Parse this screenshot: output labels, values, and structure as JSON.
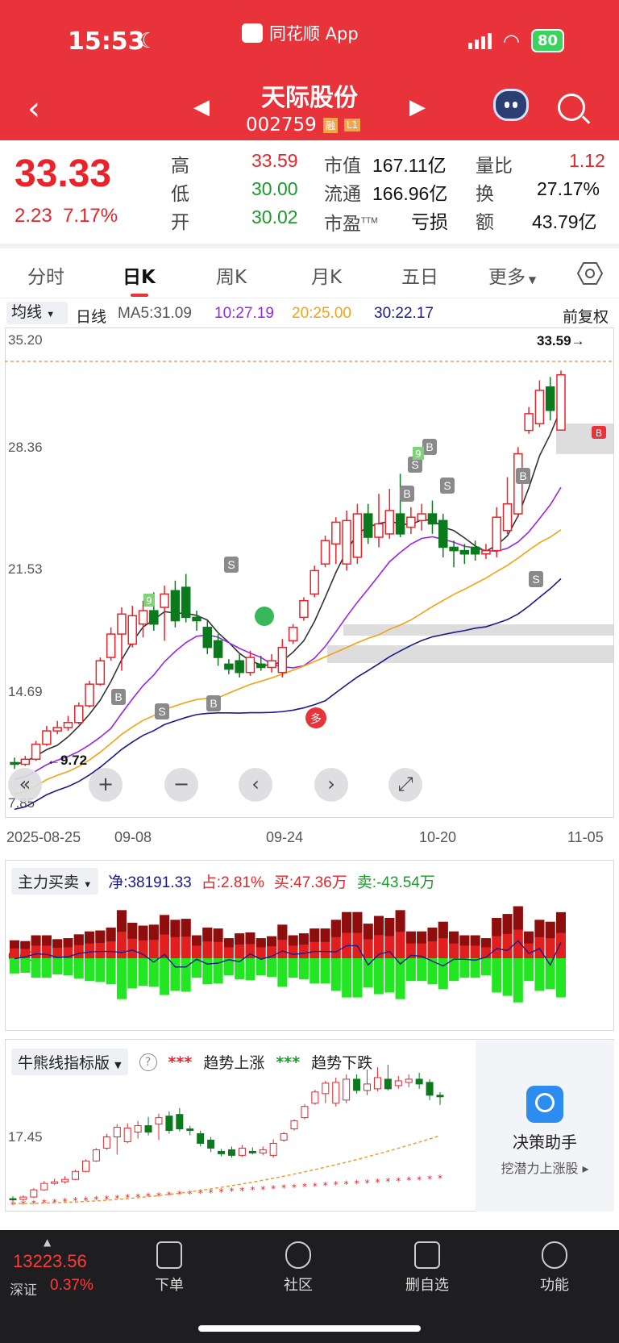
{
  "status": {
    "time": "15:53",
    "app_name": "同花顺 App",
    "battery": "80"
  },
  "stock": {
    "name": "天际股份",
    "code": "002759",
    "tag1": "融",
    "tag2": "L1"
  },
  "quote": {
    "price": "33.33",
    "change": "2.23",
    "change_pct": "7.17%",
    "high_label": "高",
    "high": "33.59",
    "low_label": "低",
    "low": "30.00",
    "open_label": "开",
    "open": "30.02",
    "mktcap_label": "市值",
    "mktcap": "167.11亿",
    "float_label": "流通",
    "float": "166.96亿",
    "pe_label": "市盈",
    "pe_sup": "TTM",
    "pe": "亏损",
    "vr_label": "量比",
    "vr": "1.12",
    "turnover_label": "换",
    "turnover": "27.17%",
    "amount_label": "额",
    "amount": "43.79亿"
  },
  "tabs": [
    "分时",
    "日K",
    "周K",
    "月K",
    "五日",
    "更多"
  ],
  "ma": {
    "selector": "均线",
    "period": "日线",
    "ma5": "MA5:31.09",
    "ma10": "10:27.19",
    "ma20": "20:25.00",
    "ma30": "30:22.17",
    "adjust": "前复权",
    "colors": {
      "ma5": "#333333",
      "ma10": "#9b25e6",
      "ma20": "#f3a312",
      "ma30": "#1a1a8c"
    }
  },
  "kline": {
    "y_ticks": [
      "35.20",
      "28.36",
      "21.53",
      "14.69",
      "7.85"
    ],
    "x_ticks": [
      "2025-08-25",
      "09-08",
      "09-24",
      "10-20",
      "11-05"
    ],
    "max_label": "33.59→",
    "min_label": "←9.72",
    "markers": [
      "S",
      "B",
      "多",
      "9"
    ]
  },
  "chart_data": {
    "type": "candlestick",
    "ylim": [
      7.85,
      35.2
    ],
    "candles": [
      {
        "o": 10.1,
        "c": 10.0,
        "h": 10.4,
        "l": 9.72
      },
      {
        "o": 10.0,
        "c": 10.3,
        "h": 10.5,
        "l": 9.9
      },
      {
        "o": 10.3,
        "c": 11.2,
        "h": 11.4,
        "l": 10.2
      },
      {
        "o": 11.2,
        "c": 12.0,
        "h": 12.3,
        "l": 11.1
      },
      {
        "o": 12.0,
        "c": 12.2,
        "h": 12.6,
        "l": 11.8
      },
      {
        "o": 12.2,
        "c": 12.5,
        "h": 12.9,
        "l": 12.0
      },
      {
        "o": 12.5,
        "c": 13.5,
        "h": 13.7,
        "l": 12.4
      },
      {
        "o": 13.5,
        "c": 14.8,
        "h": 15.0,
        "l": 13.4
      },
      {
        "o": 14.8,
        "c": 16.2,
        "h": 16.4,
        "l": 14.7
      },
      {
        "o": 16.4,
        "c": 17.8,
        "h": 18.2,
        "l": 16.2
      },
      {
        "o": 17.8,
        "c": 19.0,
        "h": 19.4,
        "l": 15.6
      },
      {
        "o": 17.2,
        "c": 18.9,
        "h": 19.5,
        "l": 17.0
      },
      {
        "o": 18.4,
        "c": 19.2,
        "h": 19.8,
        "l": 17.6
      },
      {
        "o": 19.2,
        "c": 18.4,
        "h": 20.3,
        "l": 18.0
      },
      {
        "o": 19.4,
        "c": 20.2,
        "h": 20.7,
        "l": 17.4
      },
      {
        "o": 20.4,
        "c": 18.6,
        "h": 21.0,
        "l": 18.2
      },
      {
        "o": 20.6,
        "c": 18.8,
        "h": 21.4,
        "l": 18.5
      },
      {
        "o": 18.8,
        "c": 18.6,
        "h": 19.2,
        "l": 18.0
      },
      {
        "o": 18.2,
        "c": 17.0,
        "h": 18.6,
        "l": 16.6
      },
      {
        "o": 17.4,
        "c": 16.4,
        "h": 17.8,
        "l": 15.9
      },
      {
        "o": 16.0,
        "c": 15.7,
        "h": 16.3,
        "l": 15.4
      },
      {
        "o": 16.2,
        "c": 15.5,
        "h": 16.6,
        "l": 15.2
      },
      {
        "o": 15.5,
        "c": 16.4,
        "h": 16.8,
        "l": 15.3
      },
      {
        "o": 16.0,
        "c": 15.8,
        "h": 16.5,
        "l": 15.6
      },
      {
        "o": 15.8,
        "c": 16.2,
        "h": 16.6,
        "l": 15.5
      },
      {
        "o": 15.5,
        "c": 17.0,
        "h": 17.5,
        "l": 15.2
      },
      {
        "o": 17.4,
        "c": 18.2,
        "h": 18.4,
        "l": 17.2
      },
      {
        "o": 18.8,
        "c": 19.8,
        "h": 20.0,
        "l": 18.6
      },
      {
        "o": 20.2,
        "c": 21.6,
        "h": 21.9,
        "l": 20.0
      },
      {
        "o": 22.0,
        "c": 23.4,
        "h": 23.7,
        "l": 21.8
      },
      {
        "o": 23.2,
        "c": 24.5,
        "h": 24.8,
        "l": 22.0
      },
      {
        "o": 22.0,
        "c": 24.6,
        "h": 25.2,
        "l": 21.6
      },
      {
        "o": 22.4,
        "c": 25.0,
        "h": 25.6,
        "l": 22.0
      },
      {
        "o": 25.0,
        "c": 23.6,
        "h": 25.6,
        "l": 23.2
      },
      {
        "o": 23.6,
        "c": 24.4,
        "h": 26.2,
        "l": 23.0
      },
      {
        "o": 23.8,
        "c": 25.2,
        "h": 26.5,
        "l": 23.5
      },
      {
        "o": 25.0,
        "c": 23.8,
        "h": 27.4,
        "l": 23.6
      },
      {
        "o": 24.2,
        "c": 24.8,
        "h": 25.4,
        "l": 23.8
      },
      {
        "o": 24.6,
        "c": 25.0,
        "h": 25.6,
        "l": 24.0
      },
      {
        "o": 25.0,
        "c": 24.4,
        "h": 25.8,
        "l": 23.8
      },
      {
        "o": 24.6,
        "c": 23.0,
        "h": 25.0,
        "l": 22.4
      },
      {
        "o": 23.0,
        "c": 22.8,
        "h": 23.4,
        "l": 21.8
      },
      {
        "o": 22.8,
        "c": 22.6,
        "h": 23.2,
        "l": 22.0
      },
      {
        "o": 23.0,
        "c": 22.6,
        "h": 23.4,
        "l": 22.2
      },
      {
        "o": 22.6,
        "c": 22.8,
        "h": 23.2,
        "l": 22.3
      },
      {
        "o": 22.8,
        "c": 24.8,
        "h": 25.4,
        "l": 22.4
      },
      {
        "o": 24.0,
        "c": 25.6,
        "h": 27.2,
        "l": 23.8
      },
      {
        "o": 25.0,
        "c": 28.6,
        "h": 29.0,
        "l": 24.8
      },
      {
        "o": 30.0,
        "c": 31.0,
        "h": 31.4,
        "l": 29.8
      },
      {
        "o": 30.4,
        "c": 32.4,
        "h": 33.0,
        "l": 30.2
      },
      {
        "o": 32.6,
        "c": 31.2,
        "h": 33.2,
        "l": 30.6
      },
      {
        "o": 30.02,
        "c": 33.33,
        "h": 33.59,
        "l": 30.0
      }
    ]
  },
  "money": {
    "selector": "主力买卖",
    "net": "净:38191.33",
    "ratio": "占:2.81%",
    "buy": "买:47.36万",
    "sell": "卖:-43.54万",
    "y_label": "0.00"
  },
  "bull_bear": {
    "selector": "牛熊线指标版",
    "help": "?",
    "up_dots": "***",
    "up_label": "趋势上涨",
    "down_dots": "***",
    "down_label": "趋势下跌",
    "y_label": "17.45"
  },
  "assistant": {
    "title": "决策助手",
    "subtitle": "挖潜力上涨股 ▸"
  },
  "bottom": {
    "index_value": "13223.56",
    "index_name": "深证",
    "index_pct": "0.37%",
    "nav": [
      "下单",
      "社区",
      "删自选",
      "功能"
    ]
  }
}
